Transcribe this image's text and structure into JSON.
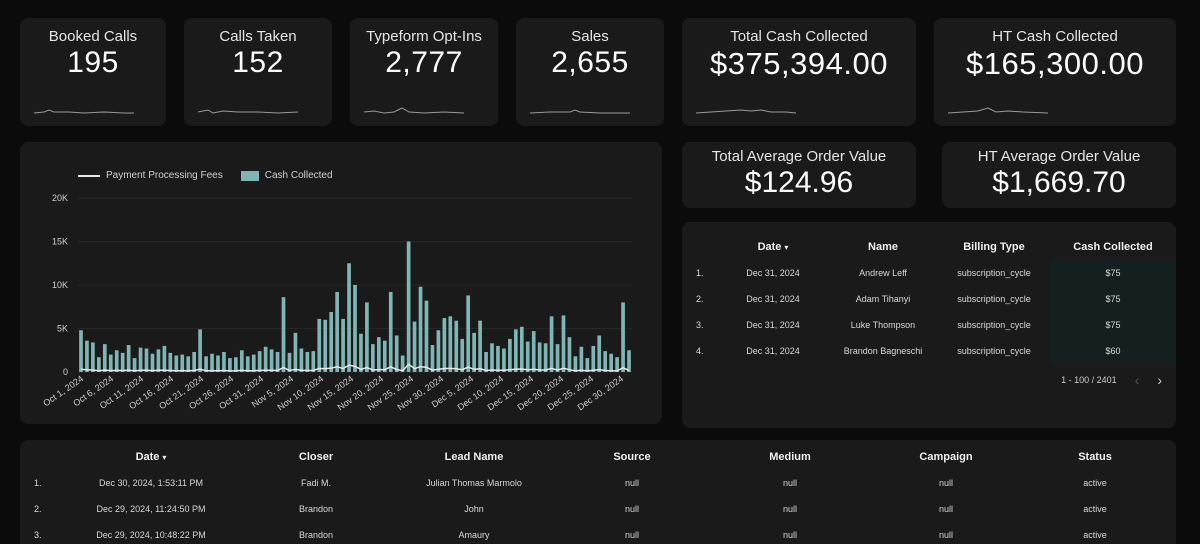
{
  "kpis": [
    {
      "label": "Booked Calls",
      "value": "195"
    },
    {
      "label": "Calls Taken",
      "value": "152"
    },
    {
      "label": "Typeform Opt-Ins",
      "value": "2,777"
    },
    {
      "label": "Sales",
      "value": "2,655"
    },
    {
      "label": "Total Cash Collected",
      "value": "$375,394.00"
    },
    {
      "label": "HT Cash Collected",
      "value": "$165,300.00"
    }
  ],
  "aov": [
    {
      "label": "Total Average Order Value",
      "value": "$124.96"
    },
    {
      "label": "HT Average Order Value",
      "value": "$1,669.70"
    }
  ],
  "colors": {
    "accent": "#7fb5b5",
    "line": "#e8e8e8",
    "card": "#1a1a1a",
    "background": "#0b0b0b"
  },
  "chart_data": {
    "type": "bar",
    "title": "",
    "xlabel": "",
    "ylabel": "",
    "ylim": [
      0,
      20000
    ],
    "yticks": [
      "0",
      "5K",
      "10K",
      "15K",
      "20K"
    ],
    "legend_position": "top-left",
    "x_tick_labels": [
      "Oct 1, 2024",
      "Oct 6, 2024",
      "Oct 11, 2024",
      "Oct 16, 2024",
      "Oct 21, 2024",
      "Oct 26, 2024",
      "Oct 31, 2024",
      "Nov 5, 2024",
      "Nov 10, 2024",
      "Nov 15, 2024",
      "Nov 20, 2024",
      "Nov 25, 2024",
      "Nov 30, 2024",
      "Dec 5, 2024",
      "Dec 10, 2024",
      "Dec 15, 2024",
      "Dec 20, 2024",
      "Dec 25, 2024",
      "Dec 30, 2024"
    ],
    "series": [
      {
        "name": "Cash Collected",
        "kind": "bar",
        "values": [
          4800,
          3600,
          3400,
          1700,
          3200,
          2000,
          2500,
          2200,
          3100,
          1600,
          2800,
          2700,
          2100,
          2600,
          3000,
          2200,
          1900,
          2000,
          1800,
          2300,
          4900,
          1800,
          2100,
          1900,
          2300,
          1600,
          1700,
          2500,
          1800,
          2000,
          2400,
          2900,
          2600,
          2300,
          8600,
          2200,
          4500,
          2700,
          2300,
          2400,
          6100,
          6000,
          6900,
          9200,
          6100,
          12500,
          10000,
          4400,
          8000,
          3200,
          4000,
          3600,
          9200,
          4200,
          1900,
          15000,
          5800,
          9800,
          8200,
          3100,
          4800,
          6200,
          6400,
          5900,
          3800,
          8800,
          4500,
          5900,
          2300,
          3300,
          3000,
          2700,
          3800,
          4900,
          5200,
          3500,
          4700,
          3400,
          3300,
          6400,
          3200,
          6500,
          4000,
          1800,
          2900,
          1600,
          3000,
          4200,
          2400,
          2100,
          1700,
          8000,
          2500
        ]
      },
      {
        "name": "Payment Processing Fees",
        "kind": "line",
        "values": [
          300,
          250,
          230,
          150,
          220,
          160,
          180,
          170,
          210,
          140,
          200,
          190,
          160,
          190,
          210,
          170,
          150,
          160,
          140,
          170,
          320,
          140,
          160,
          150,
          170,
          130,
          140,
          180,
          140,
          150,
          180,
          210,
          190,
          170,
          520,
          170,
          300,
          190,
          170,
          180,
          400,
          390,
          450,
          600,
          400,
          780,
          640,
          300,
          520,
          230,
          280,
          260,
          600,
          290,
          150,
          900,
          380,
          620,
          530,
          220,
          320,
          400,
          410,
          380,
          260,
          560,
          300,
          380,
          170,
          230,
          210,
          190,
          260,
          320,
          340,
          240,
          310,
          230,
          230,
          410,
          220,
          420,
          270,
          140,
          200,
          130,
          210,
          280,
          170,
          150,
          130,
          500,
          180
        ]
      }
    ]
  },
  "cash_table": {
    "headers": [
      "Date",
      "Name",
      "Billing Type",
      "Cash Collected"
    ],
    "sort_caret": "▾",
    "rows": [
      {
        "num": "1.",
        "date": "Dec 31, 2024",
        "name": "Andrew Leff",
        "billing": "subscription_cycle",
        "cash": "$75"
      },
      {
        "num": "2.",
        "date": "Dec 31, 2024",
        "name": "Adam Tihanyi",
        "billing": "subscription_cycle",
        "cash": "$75"
      },
      {
        "num": "3.",
        "date": "Dec 31, 2024",
        "name": "Luke Thompson",
        "billing": "subscription_cycle",
        "cash": "$75"
      },
      {
        "num": "4.",
        "date": "Dec 31, 2024",
        "name": "Brandon Bagneschi",
        "billing": "subscription_cycle",
        "cash": "$60"
      }
    ],
    "pagination": "1 - 100 / 2401",
    "prev_icon": "‹",
    "next_icon": "›"
  },
  "calls_table": {
    "headers": [
      "Date",
      "Closer",
      "Lead Name",
      "Source",
      "Medium",
      "Campaign",
      "Status"
    ],
    "sort_caret": "▾",
    "rows": [
      {
        "num": "1.",
        "date": "Dec 30, 2024, 1:53:11 PM",
        "closer": "Fadi M.",
        "lead": "Julian Thomas Marmolo",
        "source": "null",
        "medium": "null",
        "campaign": "null",
        "status": "active"
      },
      {
        "num": "2.",
        "date": "Dec 29, 2024, 11:24:50 PM",
        "closer": "Brandon",
        "lead": "John",
        "source": "null",
        "medium": "null",
        "campaign": "null",
        "status": "active"
      },
      {
        "num": "3.",
        "date": "Dec 29, 2024, 10:48:22 PM",
        "closer": "Brandon",
        "lead": "Amaury",
        "source": "null",
        "medium": "null",
        "campaign": "null",
        "status": "active"
      }
    ]
  }
}
